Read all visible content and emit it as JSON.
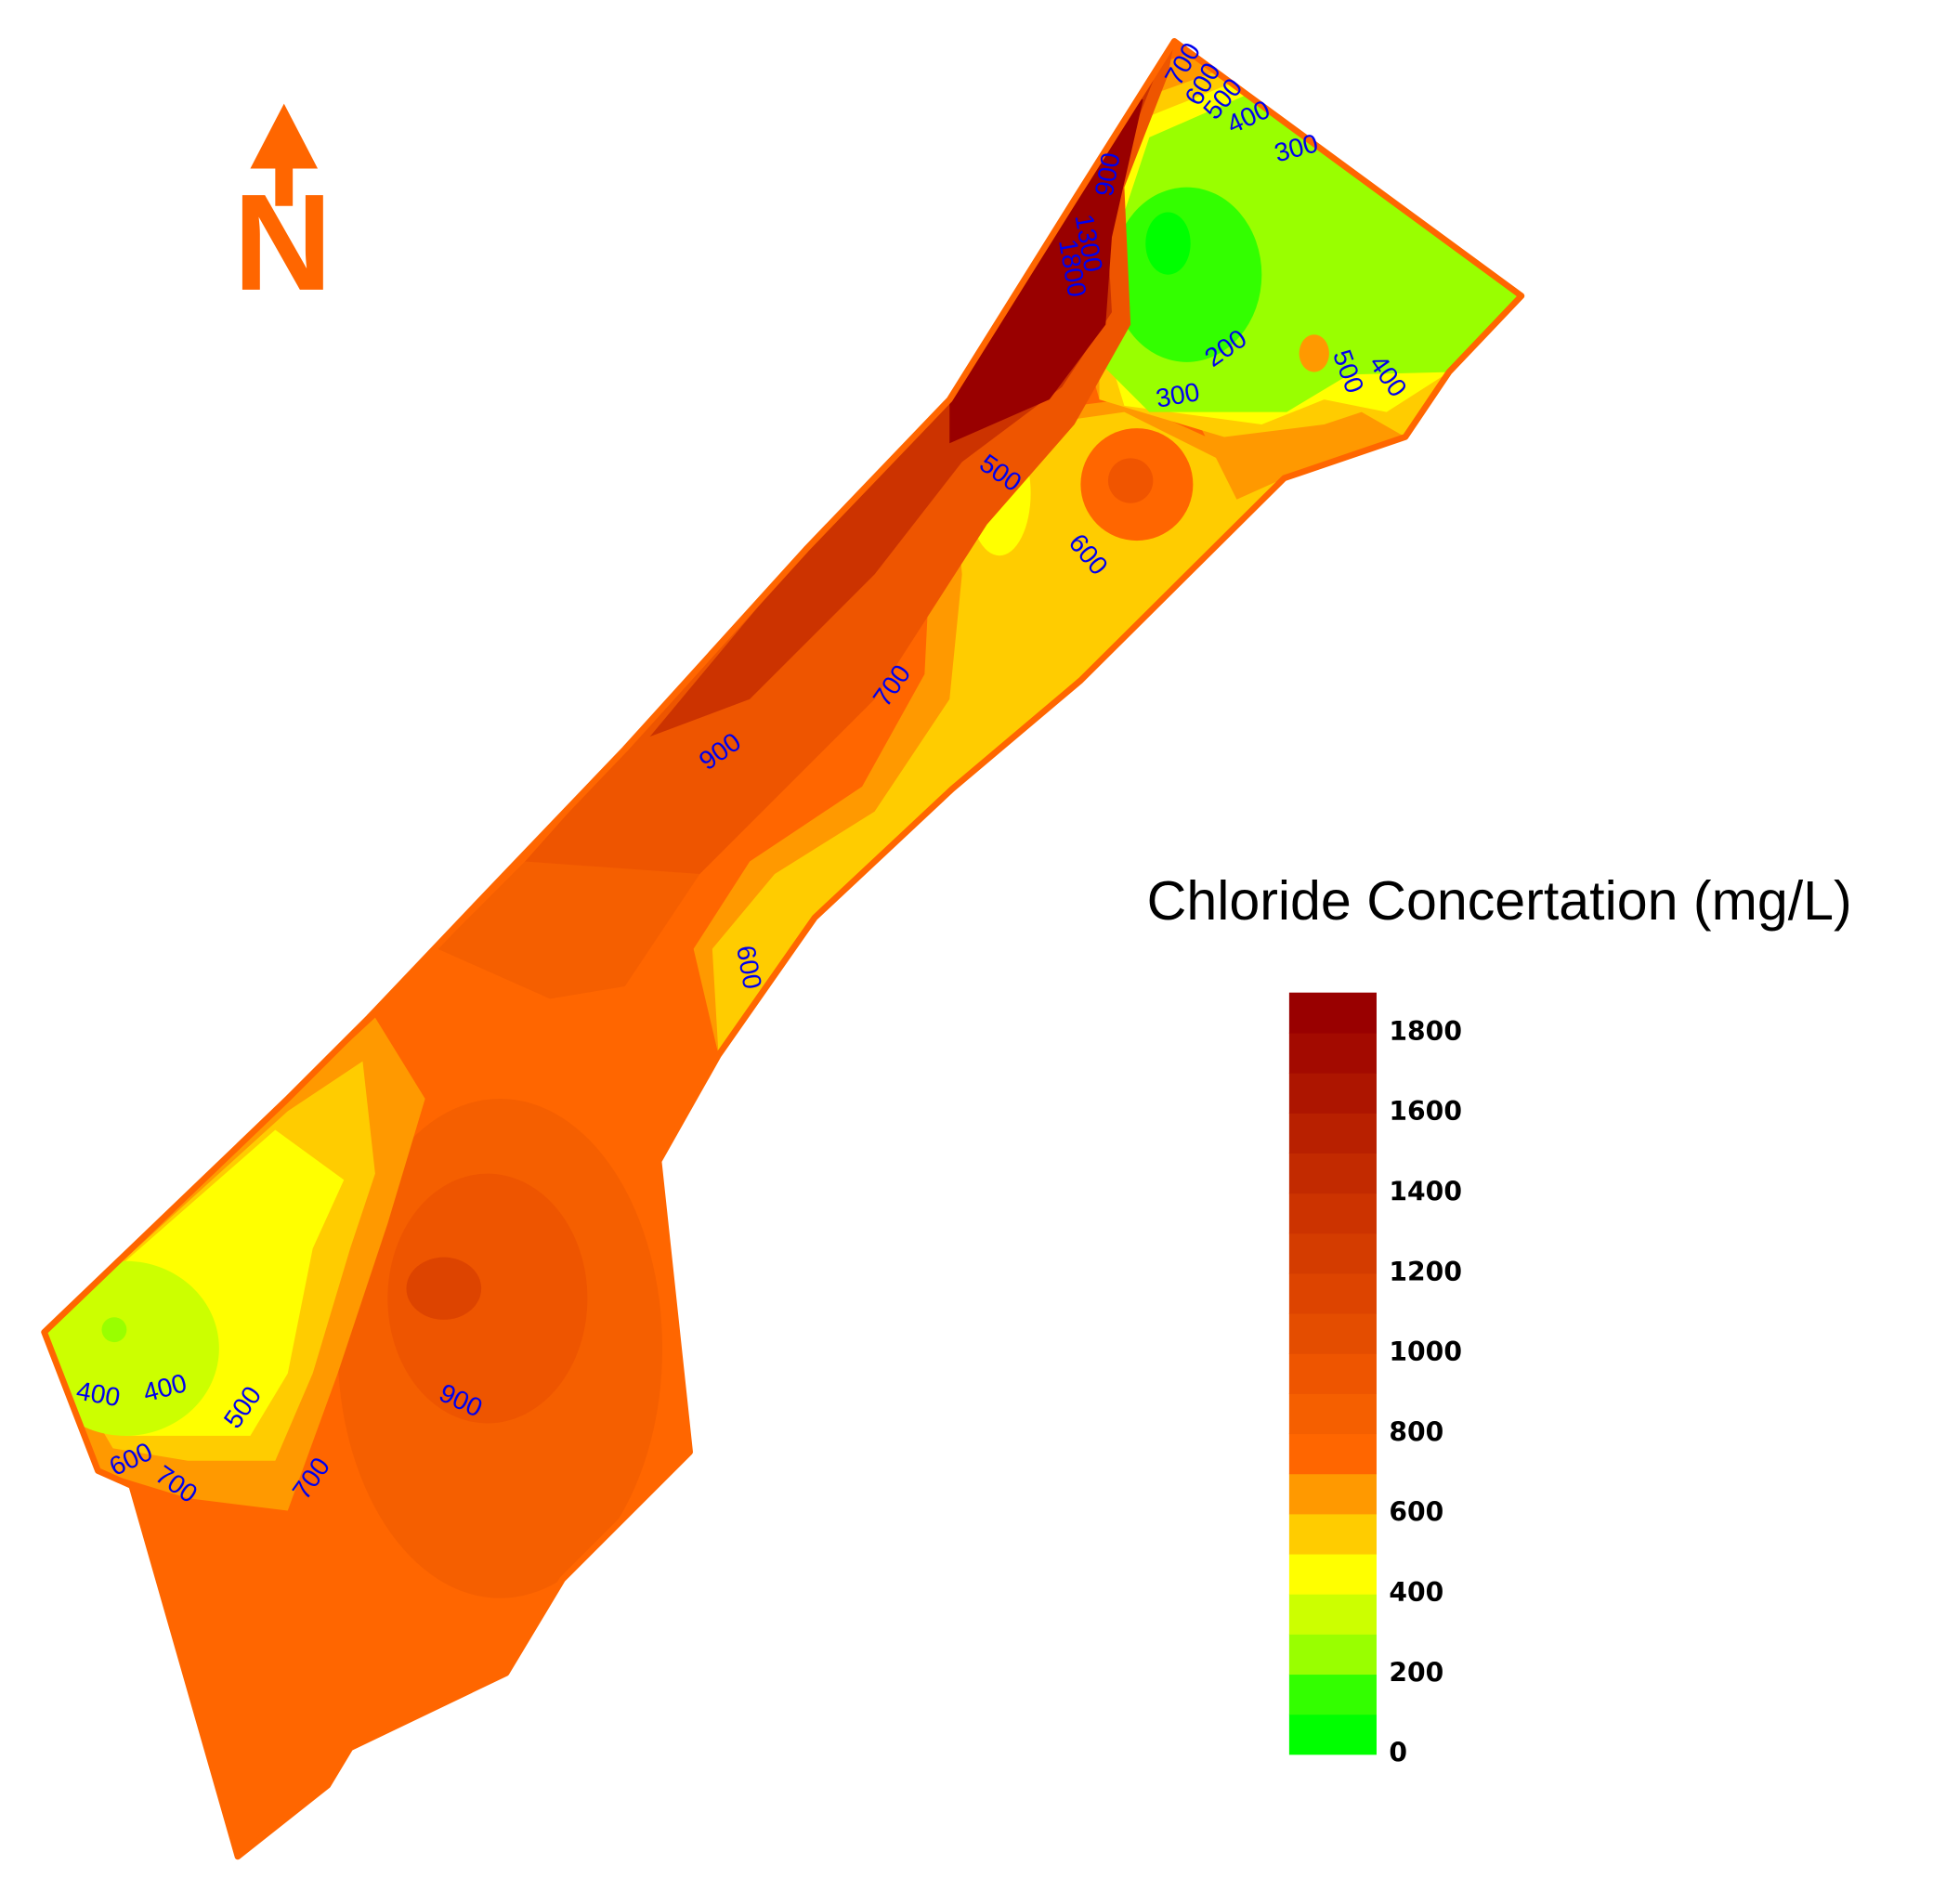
{
  "map_data": {
    "legend": {
      "title": "Chloride Concertation (mg/L)",
      "range": [
        0,
        1900
      ],
      "ticks": [
        0,
        200,
        400,
        600,
        800,
        1000,
        1200,
        1400,
        1600,
        1800
      ],
      "band_step": 100,
      "colors": [
        "#00ff00",
        "#33ff00",
        "#99ff00",
        "#ccff00",
        "#ffff00",
        "#ffcc00",
        "#ff9900",
        "#ff6600",
        "#f55f00",
        "#ee5500",
        "#e44d00",
        "#dd4400",
        "#d43c00",
        "#cc3300",
        "#c22a00",
        "#b82000",
        "#ad1500",
        "#a30a00",
        "#990000"
      ]
    },
    "north_label": "N",
    "contour_labels": [
      700,
      600,
      500,
      400,
      300,
      900,
      1300,
      1800,
      200,
      300,
      500,
      400,
      500,
      600,
      700,
      900,
      600,
      400,
      400,
      500,
      600,
      700,
      700,
      900
    ]
  }
}
